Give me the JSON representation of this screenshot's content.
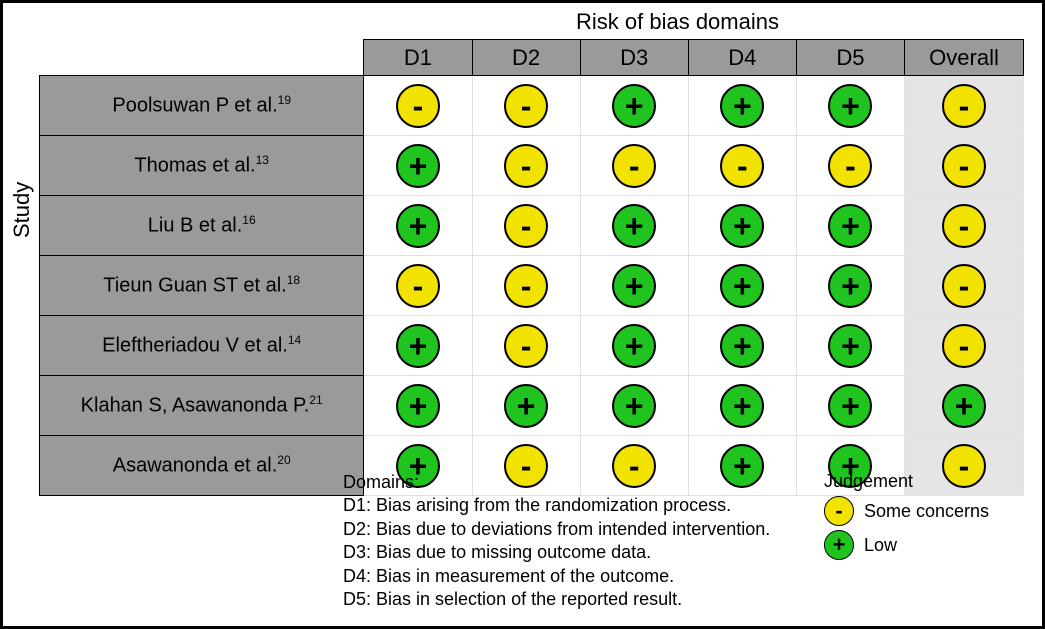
{
  "title": "Risk of bias domains",
  "study_axis_label": "Study",
  "columns": [
    "D1",
    "D2",
    "D3",
    "D4",
    "D5",
    "Overall"
  ],
  "levels": {
    "low": {
      "symbol": "+",
      "color": "#1fc41f",
      "label": "Low"
    },
    "some": {
      "symbol": "-",
      "color": "#f2e200",
      "label": "Some concerns"
    }
  },
  "circle_border": "#000000",
  "header_bg": "#9a9a9a",
  "overall_bg": "#e5e5e5",
  "cell_border": "#e0e0e0",
  "outer_border": "#000000",
  "studies": [
    {
      "name": "Poolsuwan P et al.",
      "ref": "19",
      "ratings": [
        "some",
        "some",
        "low",
        "low",
        "low"
      ],
      "overall": "some"
    },
    {
      "name": "Thomas et al.",
      "ref": "13",
      "ratings": [
        "low",
        "some",
        "some",
        "some",
        "some"
      ],
      "overall": "some"
    },
    {
      "name": "Liu B et al.",
      "ref": "16",
      "ratings": [
        "low",
        "some",
        "low",
        "low",
        "low"
      ],
      "overall": "some"
    },
    {
      "name": "Tieun Guan ST et al.",
      "ref": "18",
      "ratings": [
        "some",
        "some",
        "low",
        "low",
        "low"
      ],
      "overall": "some"
    },
    {
      "name": "Eleftheriadou V et al.",
      "ref": "14",
      "ratings": [
        "low",
        "some",
        "low",
        "low",
        "low"
      ],
      "overall": "some"
    },
    {
      "name": "Klahan S, Asawanonda P.",
      "ref": "21",
      "ratings": [
        "low",
        "low",
        "low",
        "low",
        "low"
      ],
      "overall": "low"
    },
    {
      "name": "Asawanonda et al.",
      "ref": "20",
      "ratings": [
        "low",
        "some",
        "some",
        "low",
        "low"
      ],
      "overall": "some"
    }
  ],
  "domains_legend_title": "Domains:",
  "domains_legend": [
    "D1: Bias arising from the randomization process.",
    "D2: Bias due to deviations from intended intervention.",
    "D3: Bias due to missing outcome data.",
    "D4: Bias in measurement of the outcome.",
    "D5: Bias in selection of the reported result."
  ],
  "judgement_title": "Judgement",
  "judgement_order": [
    "some",
    "low"
  ]
}
